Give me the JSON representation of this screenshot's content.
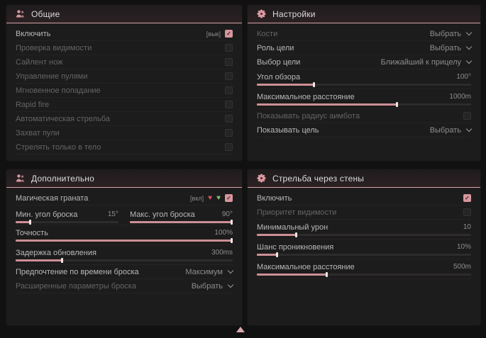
{
  "theme": {
    "accent_pink": "#d6969d",
    "slider_fill": "#cd8f96",
    "panel_bg": "#1d1c1c",
    "page_bg": "#121111",
    "header_underline": "#d2a3a9"
  },
  "panels": [
    {
      "id": "general",
      "title": "Общие",
      "icon": "users-icon",
      "rows": [
        {
          "type": "toggle",
          "label": "Включить",
          "hint": "[вык]",
          "checked": true,
          "enabled": true
        },
        {
          "type": "toggle",
          "label": "Проверка видимости",
          "checked": false,
          "enabled": false
        },
        {
          "type": "toggle",
          "label": "Сайлент нож",
          "checked": false,
          "enabled": false
        },
        {
          "type": "toggle",
          "label": "Управление пулями",
          "checked": false,
          "enabled": false
        },
        {
          "type": "toggle",
          "label": "Мгновенное попадание",
          "checked": false,
          "enabled": false
        },
        {
          "type": "toggle",
          "label": "Rapid fire",
          "checked": false,
          "enabled": false
        },
        {
          "type": "toggle",
          "label": "Автоматическая стрельба",
          "checked": false,
          "enabled": false
        },
        {
          "type": "toggle",
          "label": "Захват пули",
          "checked": false,
          "enabled": false
        },
        {
          "type": "toggle",
          "label": "Стрелять только в тело",
          "checked": false,
          "enabled": false
        }
      ]
    },
    {
      "id": "settings",
      "title": "Настройки",
      "icon": "gear-icon",
      "rows": [
        {
          "type": "dropdown",
          "label": "Кости",
          "value": "Выбрать",
          "enabled": false
        },
        {
          "type": "dropdown",
          "label": "Роль цели",
          "value": "Выбрать",
          "enabled": true
        },
        {
          "type": "dropdown",
          "label": "Выбор цели",
          "value": "Ближайший к прицелу",
          "enabled": true
        },
        {
          "type": "slider",
          "label": "Угол обзора",
          "value": "100°",
          "fill": 27,
          "enabled": true
        },
        {
          "type": "slider",
          "label": "Максимальное расстояние",
          "value": "1000m",
          "fill": 66,
          "enabled": true
        },
        {
          "type": "toggle",
          "label": "Показывать радиус аимбота",
          "checked": false,
          "enabled": false
        },
        {
          "type": "dropdown",
          "label": "Показывать цель",
          "value": "Выбрать",
          "enabled": true
        }
      ]
    },
    {
      "id": "additional",
      "title": "Дополнительно",
      "icon": "users-icon",
      "rows": [
        {
          "type": "toggle",
          "label": "Магическая граната",
          "hint": "[вкл]",
          "icons": [
            "red-heart-icon",
            "green-heart-icon"
          ],
          "checked": true,
          "enabled": true
        },
        {
          "type": "slider-pair",
          "items": [
            {
              "label": "Мин. угол броска",
              "value": "15°",
              "fill": 15
            },
            {
              "label": "Макс. угол броска",
              "value": "90°",
              "fill": 100
            }
          ]
        },
        {
          "type": "slider",
          "label": "Точность",
          "value": "100%",
          "fill": 100,
          "enabled": true
        },
        {
          "type": "slider",
          "label": "Задержка обновления",
          "value": "300ms",
          "fill": 22,
          "enabled": true
        },
        {
          "type": "dropdown",
          "label": "Предпочтение по времени броска",
          "value": "Максимум",
          "enabled": true
        },
        {
          "type": "dropdown",
          "label": "Расширенные параметры броска",
          "value": "Выбрать",
          "enabled": false
        }
      ]
    },
    {
      "id": "wallbang",
      "title": "Стрельба через стены",
      "icon": "gear-icon",
      "rows": [
        {
          "type": "toggle",
          "label": "Включить",
          "checked": true,
          "enabled": true
        },
        {
          "type": "toggle",
          "label": "Приоритет видимости",
          "checked": false,
          "enabled": false
        },
        {
          "type": "slider",
          "label": "Минимальный урон",
          "value": "10",
          "fill": 19,
          "enabled": true
        },
        {
          "type": "slider",
          "label": "Шанс проникновения",
          "value": "10%",
          "fill": 10,
          "enabled": true
        },
        {
          "type": "slider",
          "label": "Максимальное расстояние",
          "value": "500m",
          "fill": 33,
          "enabled": true
        }
      ]
    }
  ],
  "footer": {
    "scroll_icon": "scroll-up-indicator"
  }
}
